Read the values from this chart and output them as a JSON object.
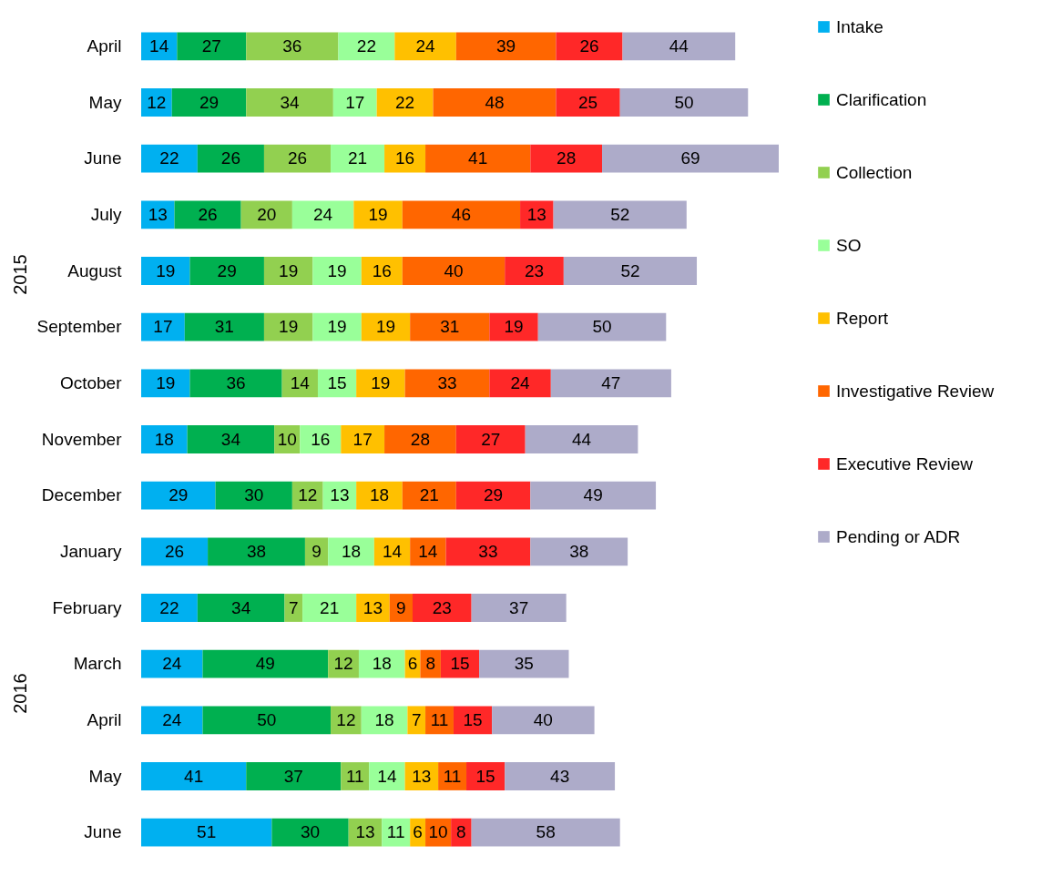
{
  "chart_data": {
    "type": "bar",
    "orientation": "horizontal",
    "stacked": true,
    "data_labels": true,
    "legend": "right",
    "grid": false,
    "categories": [
      "April",
      "May",
      "June",
      "July",
      "August",
      "September",
      "October",
      "November",
      "December",
      "January",
      "February",
      "March",
      "April",
      "May",
      "June"
    ],
    "annotations": [
      "2015",
      "2016"
    ],
    "series": [
      {
        "name": "Intake",
        "color": "#00b0f0",
        "values": [
          14,
          12,
          22,
          13,
          19,
          17,
          19,
          18,
          29,
          26,
          22,
          24,
          24,
          41,
          51
        ]
      },
      {
        "name": "Clarification",
        "color": "#00b050",
        "values": [
          27,
          29,
          26,
          26,
          29,
          31,
          36,
          34,
          30,
          38,
          34,
          49,
          50,
          37,
          30
        ]
      },
      {
        "name": "Collection",
        "color": "#92d050",
        "values": [
          36,
          34,
          26,
          20,
          19,
          19,
          14,
          10,
          12,
          9,
          7,
          12,
          12,
          11,
          13
        ]
      },
      {
        "name": "SO",
        "color": "#99ff99",
        "values": [
          22,
          17,
          21,
          24,
          19,
          19,
          15,
          16,
          13,
          18,
          21,
          18,
          18,
          14,
          11
        ]
      },
      {
        "name": "Report",
        "color": "#ffc000",
        "values": [
          24,
          22,
          16,
          19,
          16,
          19,
          19,
          17,
          18,
          14,
          13,
          6,
          7,
          13,
          6
        ]
      },
      {
        "name": "Investigative Review",
        "color": "#ff6600",
        "values": [
          39,
          48,
          41,
          46,
          40,
          31,
          33,
          28,
          21,
          14,
          9,
          8,
          11,
          11,
          10
        ]
      },
      {
        "name": "Executive Review",
        "color": "#ff2828",
        "values": [
          26,
          25,
          28,
          13,
          23,
          19,
          24,
          27,
          29,
          33,
          23,
          15,
          15,
          15,
          8
        ]
      },
      {
        "name": "Pending or ADR",
        "color": "#adabc9",
        "values": [
          44,
          50,
          69,
          52,
          52,
          50,
          47,
          44,
          49,
          38,
          37,
          35,
          40,
          43,
          58
        ]
      }
    ]
  }
}
